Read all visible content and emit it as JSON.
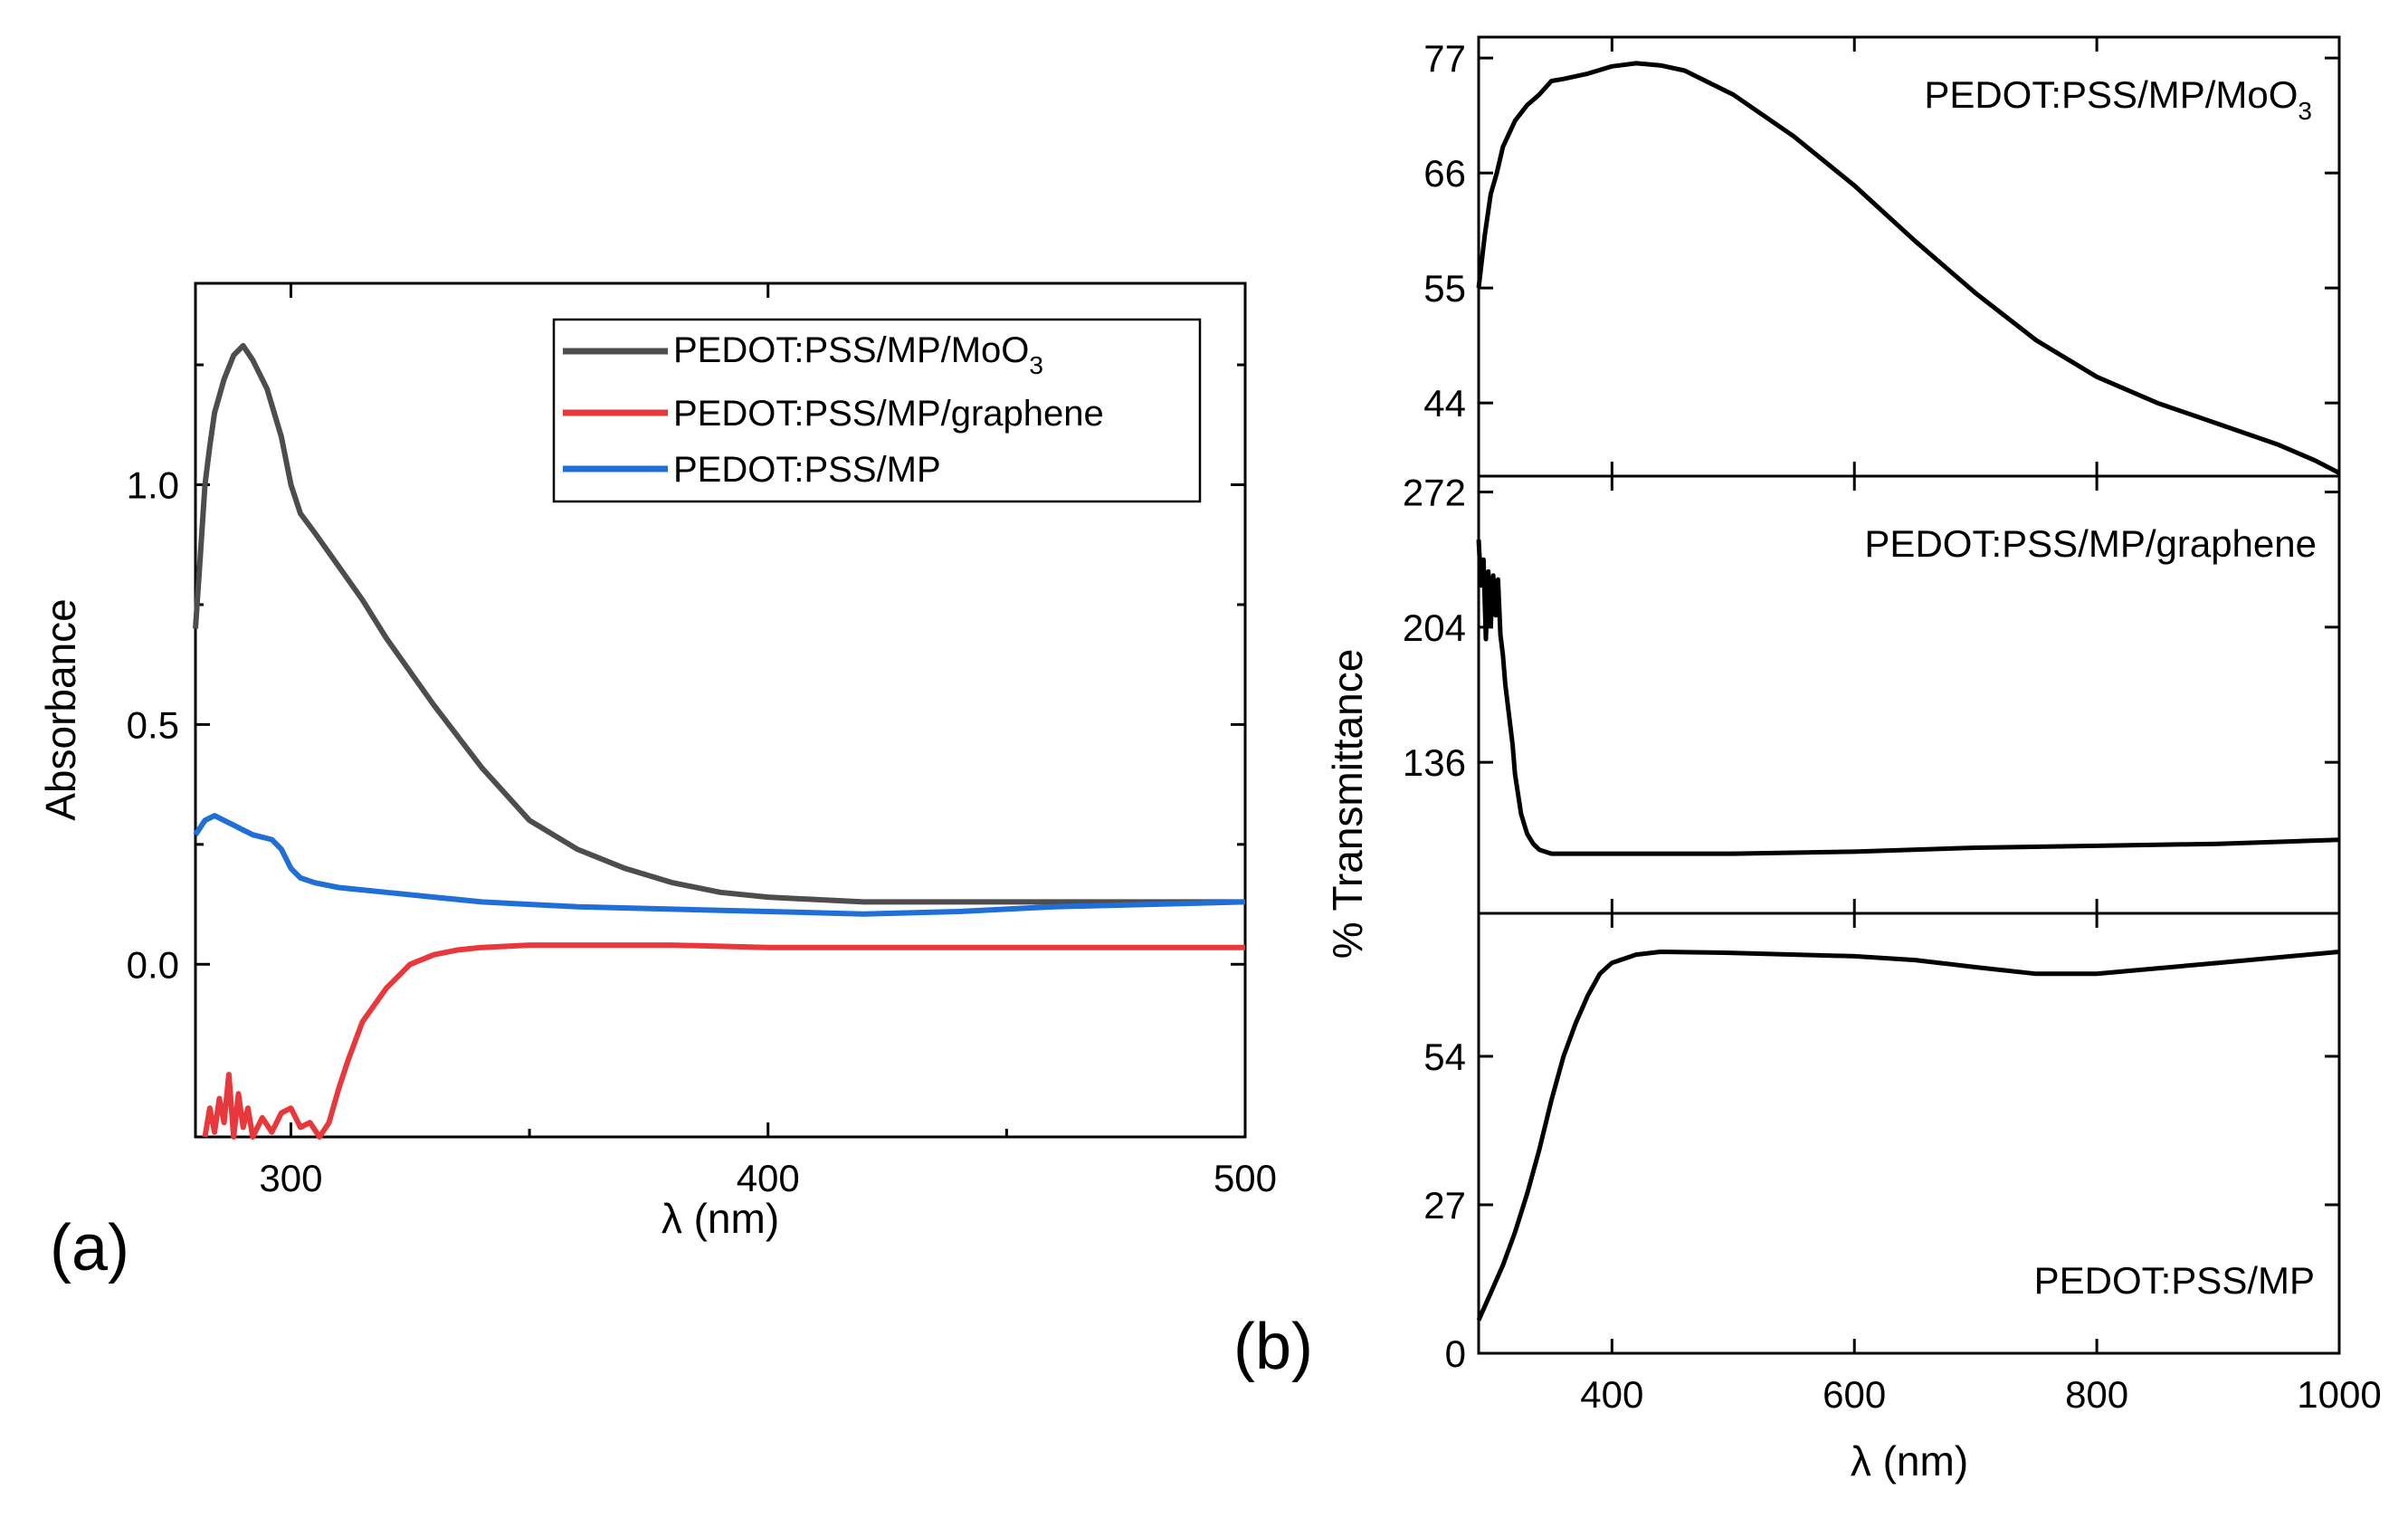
{
  "chart_data": [
    {
      "id": "a",
      "type": "line",
      "panel_label": "(a)",
      "title": "",
      "xlabel": "λ (nm)",
      "ylabel": "Absorbance",
      "xlim": [
        280,
        500
      ],
      "ylim": [
        -0.36,
        1.42
      ],
      "xticks": [
        300,
        400,
        500
      ],
      "yticks": [
        0.0,
        0.5,
        1.0
      ],
      "xtick_labels": [
        "300",
        "400",
        "500"
      ],
      "ytick_labels": [
        "0.0",
        "0.5",
        "1.0"
      ],
      "grid": false,
      "legend_position": "top-right",
      "series": [
        {
          "name": "PEDOT:PSS/MP/MoO3",
          "legend_main": "PEDOT:PSS/MP/MoO",
          "legend_sub": "3",
          "color": "#4d4d4d",
          "x": [
            280,
            281,
            282,
            283,
            284,
            286,
            288,
            290,
            292,
            295,
            298,
            300,
            302,
            305,
            310,
            315,
            320,
            330,
            340,
            350,
            360,
            370,
            380,
            390,
            400,
            410,
            420,
            440,
            460,
            480,
            500
          ],
          "y": [
            0.7,
            0.85,
            1.0,
            1.08,
            1.15,
            1.22,
            1.27,
            1.29,
            1.26,
            1.2,
            1.1,
            1.0,
            0.94,
            0.9,
            0.83,
            0.76,
            0.68,
            0.54,
            0.41,
            0.3,
            0.24,
            0.2,
            0.17,
            0.15,
            0.14,
            0.135,
            0.13,
            0.13,
            0.13,
            0.13,
            0.13
          ]
        },
        {
          "name": "PEDOT:PSS/MP/graphene",
          "legend_main": "PEDOT:PSS/MP/graphene",
          "legend_sub": "",
          "color": "#e8383b",
          "x": [
            282,
            283,
            284,
            285,
            286,
            287,
            288,
            289,
            290,
            291,
            292,
            294,
            296,
            298,
            300,
            302,
            304,
            306,
            308,
            310,
            312,
            315,
            320,
            325,
            330,
            335,
            340,
            350,
            360,
            380,
            400,
            420,
            450,
            480,
            500
          ],
          "y": [
            -0.36,
            -0.3,
            -0.35,
            -0.28,
            -0.33,
            -0.23,
            -0.36,
            -0.27,
            -0.34,
            -0.3,
            -0.36,
            -0.32,
            -0.35,
            -0.31,
            -0.3,
            -0.34,
            -0.33,
            -0.36,
            -0.33,
            -0.26,
            -0.2,
            -0.12,
            -0.05,
            0.0,
            0.02,
            0.03,
            0.035,
            0.04,
            0.04,
            0.04,
            0.035,
            0.035,
            0.035,
            0.035,
            0.035
          ]
        },
        {
          "name": "PEDOT:PSS/MP",
          "legend_main": "PEDOT:PSS/MP",
          "legend_sub": "",
          "color": "#1f6fd6",
          "x": [
            280,
            282,
            284,
            286,
            288,
            290,
            292,
            294,
            296,
            298,
            300,
            302,
            305,
            310,
            320,
            330,
            340,
            350,
            360,
            380,
            400,
            420,
            440,
            460,
            480,
            500
          ],
          "y": [
            0.27,
            0.3,
            0.31,
            0.3,
            0.29,
            0.28,
            0.27,
            0.265,
            0.26,
            0.24,
            0.2,
            0.18,
            0.17,
            0.16,
            0.15,
            0.14,
            0.13,
            0.125,
            0.12,
            0.115,
            0.11,
            0.105,
            0.11,
            0.12,
            0.125,
            0.13
          ]
        }
      ]
    },
    {
      "id": "b",
      "type": "line",
      "panel_label": "(b)",
      "xlabel": "λ (nm)",
      "ylabel": "% Transmittance",
      "xlim": [
        290,
        1000
      ],
      "xticks": [
        400,
        600,
        800,
        1000
      ],
      "xtick_labels": [
        "400",
        "600",
        "800",
        "1000"
      ],
      "grid": false,
      "line_color": "#000000",
      "panels": [
        {
          "name": "PEDOT:PSS/MP/MoO3",
          "label_main": "PEDOT:PSS/MP/MoO",
          "label_sub": "3",
          "ylim": [
            37,
            79
          ],
          "yticks": [
            44,
            55,
            66,
            77
          ],
          "ytick_labels": [
            "44",
            "55",
            "66",
            "77"
          ],
          "x": [
            290,
            295,
            300,
            305,
            310,
            320,
            330,
            340,
            350,
            360,
            380,
            400,
            420,
            440,
            460,
            500,
            550,
            600,
            650,
            700,
            750,
            800,
            850,
            900,
            950,
            980,
            1000
          ],
          "y": [
            55,
            60,
            64,
            66,
            68.5,
            71,
            72.5,
            73.5,
            74.8,
            75,
            75.5,
            76.2,
            76.5,
            76.3,
            75.8,
            73.5,
            69.5,
            64.8,
            59.5,
            54.5,
            50,
            46.5,
            44,
            42,
            40,
            38.5,
            37.3
          ]
        },
        {
          "name": "PEDOT:PSS/MP/graphene",
          "label_main": "PEDOT:PSS/MP/graphene",
          "label_sub": "",
          "ylim": [
            60,
            280
          ],
          "yticks": [
            136,
            204,
            272
          ],
          "ytick_labels": [
            "136",
            "204",
            "272"
          ],
          "x": [
            290,
            292,
            294,
            296,
            298,
            300,
            302,
            304,
            306,
            308,
            310,
            312,
            315,
            318,
            320,
            325,
            330,
            335,
            340,
            350,
            360,
            400,
            500,
            600,
            700,
            800,
            900,
            1000
          ],
          "y": [
            248,
            225,
            238,
            198,
            232,
            205,
            230,
            210,
            228,
            200,
            190,
            175,
            160,
            145,
            130,
            110,
            100,
            95,
            92,
            90,
            90,
            90,
            90,
            91,
            93,
            94,
            95,
            97
          ]
        },
        {
          "name": "PEDOT:PSS/MP",
          "label_main": "PEDOT:PSS/MP",
          "label_sub": "",
          "ylim": [
            0,
            80
          ],
          "yticks": [
            0,
            27,
            54
          ],
          "ytick_labels": [
            "0",
            "27",
            "54"
          ],
          "x": [
            290,
            300,
            310,
            320,
            330,
            340,
            350,
            360,
            370,
            380,
            390,
            400,
            420,
            440,
            500,
            600,
            650,
            700,
            750,
            800,
            850,
            900,
            950,
            1000
          ],
          "y": [
            6,
            11,
            16,
            22,
            29,
            37,
            46,
            54,
            60,
            65,
            69,
            71,
            72.5,
            73,
            72.8,
            72.2,
            71.5,
            70.2,
            69,
            69,
            70,
            71,
            72,
            73
          ]
        }
      ]
    }
  ]
}
